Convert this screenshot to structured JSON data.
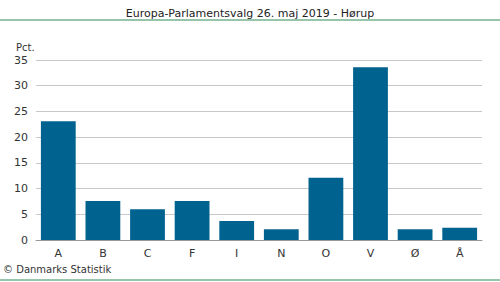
{
  "chart_data": {
    "type": "bar",
    "title": "Europa-Parlamentsvalg 26. maj 2019 - Hørup",
    "y_label": "Pct.",
    "annotation": "© Danmarks Statistik",
    "categories": [
      "A",
      "B",
      "C",
      "F",
      "I",
      "N",
      "O",
      "V",
      "Ø",
      "Å"
    ],
    "values": [
      23.1,
      7.6,
      6.0,
      7.6,
      3.7,
      2.1,
      12.1,
      33.6,
      2.1,
      2.4
    ],
    "color": "#00628f",
    "ylim": [
      0,
      35
    ],
    "yticks": [
      0,
      5,
      10,
      15,
      20,
      25,
      30,
      35
    ],
    "grid": true
  }
}
